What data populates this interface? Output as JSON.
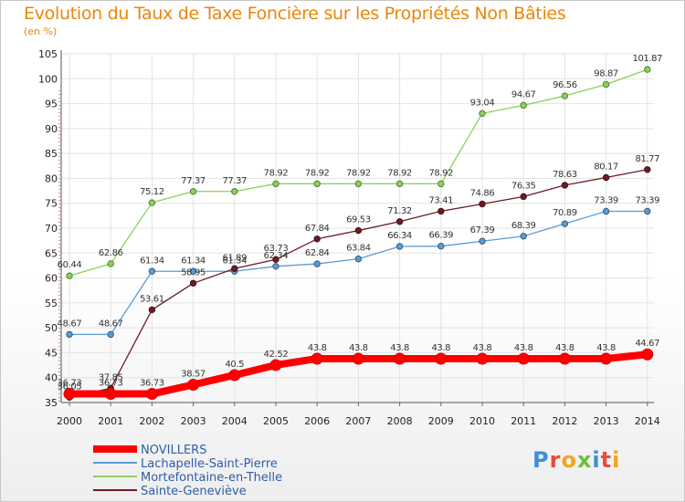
{
  "chart_data": {
    "type": "line",
    "title": "Evolution du Taux de Taxe Foncière sur les Propriétés Non Bâties",
    "ylabel": "(en %)",
    "xlabel": "",
    "ylim": [
      35,
      105
    ],
    "yticks": [
      35,
      40,
      45,
      50,
      55,
      60,
      65,
      70,
      75,
      80,
      85,
      90,
      95,
      100,
      105
    ],
    "categories": [
      "2000",
      "2001",
      "2002",
      "2003",
      "2004",
      "2005",
      "2006",
      "2007",
      "2008",
      "2009",
      "2010",
      "2011",
      "2012",
      "2013",
      "2014"
    ],
    "series": [
      {
        "name": "Lachapelle-Saint-Pierre",
        "color": "#5b9bd5",
        "values": [
          48.67,
          48.67,
          61.34,
          61.34,
          61.34,
          62.34,
          62.84,
          63.84,
          66.34,
          66.39,
          67.39,
          68.39,
          70.89,
          73.39,
          73.39
        ],
        "labels": [
          "48.67",
          "48.67",
          "61.34",
          "61.34",
          "61.34",
          "62.34",
          "62.84",
          "63.84",
          "66.34",
          "66.39",
          "67.39",
          "68.39",
          "70.89",
          "73.39",
          "73.39"
        ]
      },
      {
        "name": "Mortefontaine-en-Thelle",
        "color": "#8bd15a",
        "values": [
          60.44,
          62.86,
          75.12,
          77.37,
          77.37,
          78.92,
          78.92,
          78.92,
          78.92,
          78.92,
          93.04,
          94.67,
          96.56,
          98.87,
          101.87
        ],
        "labels": [
          "60.44",
          "62.86",
          "75.12",
          "77.37",
          "77.37",
          "78.92",
          "78.92",
          "78.92",
          "78.92",
          "78.92",
          "93.04",
          "94.67",
          "96.56",
          "98.87",
          "101.87"
        ]
      },
      {
        "name": "Sainte-Geneviève",
        "color": "#6b1c24",
        "values": [
          36.05,
          37.85,
          53.61,
          58.95,
          61.89,
          63.73,
          67.84,
          69.53,
          71.32,
          73.41,
          74.86,
          76.35,
          78.63,
          80.17,
          81.77
        ],
        "labels": [
          "36.05",
          "37.85",
          "53.61",
          "58.95",
          "61.89",
          "63.73",
          "67.84",
          "69.53",
          "71.32",
          "73.41",
          "74.86",
          "76.35",
          "78.63",
          "80.17",
          "81.77"
        ]
      },
      {
        "name": "NOVILLERS",
        "color": "#ff0000",
        "values": [
          36.73,
          36.73,
          36.73,
          38.57,
          40.5,
          42.52,
          43.8,
          43.8,
          43.8,
          43.8,
          43.8,
          43.8,
          43.8,
          43.8,
          44.67
        ],
        "labels": [
          "36.73",
          "36.73",
          "36.73",
          "38.57",
          "40.5",
          "42.52",
          "43.8",
          "43.8",
          "43.8",
          "43.8",
          "43.8",
          "43.8",
          "43.8",
          "43.8",
          "44.67"
        ]
      }
    ],
    "legend": [
      "NOVILLERS",
      "Lachapelle-Saint-Pierre",
      "Mortefontaine-en-Thelle",
      "Sainte-Geneviève"
    ],
    "legend_position": "bottom-left"
  },
  "branding": {
    "logo_text": "Proxiti"
  },
  "colors": {
    "title": "#e8860c",
    "grid": "#e3e3e3"
  }
}
